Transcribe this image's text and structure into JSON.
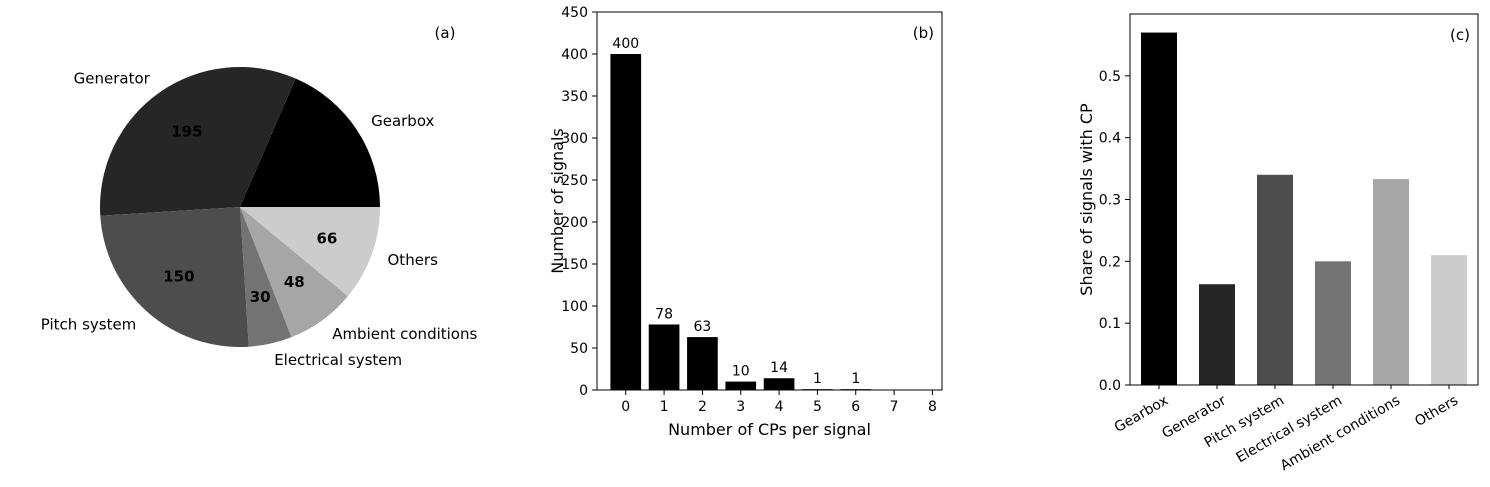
{
  "figure": {
    "background": "#ffffff",
    "text_color": "#000000"
  },
  "chart_data": [
    {
      "type": "pie",
      "panel_label": "(a)",
      "categories": [
        "Gearbox",
        "Generator",
        "Pitch system",
        "Electrical system",
        "Ambient conditions",
        "Others"
      ],
      "values": [
        111,
        195,
        150,
        30,
        48,
        66
      ],
      "colors": [
        "#000000",
        "#262626",
        "#4d4d4d",
        "#737373",
        "#a6a6a6",
        "#cccccc"
      ],
      "value_label_color": "#ffffff",
      "start_angle_deg": 0,
      "direction": "counterclockwise",
      "legend": "none"
    },
    {
      "type": "bar",
      "panel_label": "(b)",
      "x": [
        0,
        1,
        2,
        3,
        4,
        5,
        6
      ],
      "values": [
        400,
        78,
        63,
        10,
        14,
        1,
        1
      ],
      "value_labels": [
        "400",
        "78",
        "63",
        "10",
        "14",
        "1",
        "1"
      ],
      "bar_color": "#000000",
      "bar_width": 0.8,
      "xlabel": "Number of CPs per signal",
      "ylabel": "Number of signals",
      "xlim": [
        -0.75,
        8.25
      ],
      "ylim": [
        0,
        450
      ],
      "xticks": [
        0,
        1,
        2,
        3,
        4,
        5,
        6,
        7,
        8
      ],
      "xtick_labels": [
        "0",
        "1",
        "2",
        "3",
        "4",
        "5",
        "6",
        "7",
        "8"
      ],
      "yticks": [
        0,
        50,
        100,
        150,
        200,
        250,
        300,
        350,
        400,
        450
      ],
      "ytick_labels": [
        "0",
        "50",
        "100",
        "150",
        "200",
        "250",
        "300",
        "350",
        "400",
        "450"
      ],
      "grid": false,
      "legend": "none"
    },
    {
      "type": "bar",
      "panel_label": "(c)",
      "categories": [
        "Gearbox",
        "Generator",
        "Pitch system",
        "Electrical system",
        "Ambient conditions",
        "Others"
      ],
      "values": [
        0.57,
        0.163,
        0.34,
        0.2,
        0.333,
        0.21
      ],
      "colors": [
        "#000000",
        "#262626",
        "#4d4d4d",
        "#737373",
        "#a6a6a6",
        "#cccccc"
      ],
      "xlabel": "",
      "ylabel": "Share of signals with CP",
      "ylim": [
        0,
        0.6
      ],
      "yticks": [
        0,
        0.1,
        0.2,
        0.3,
        0.4,
        0.5
      ],
      "ytick_labels": [
        "0.0",
        "0.1",
        "0.2",
        "0.3",
        "0.4",
        "0.5"
      ],
      "xtick_rotation_deg": 30,
      "grid": false,
      "legend": "none"
    }
  ]
}
